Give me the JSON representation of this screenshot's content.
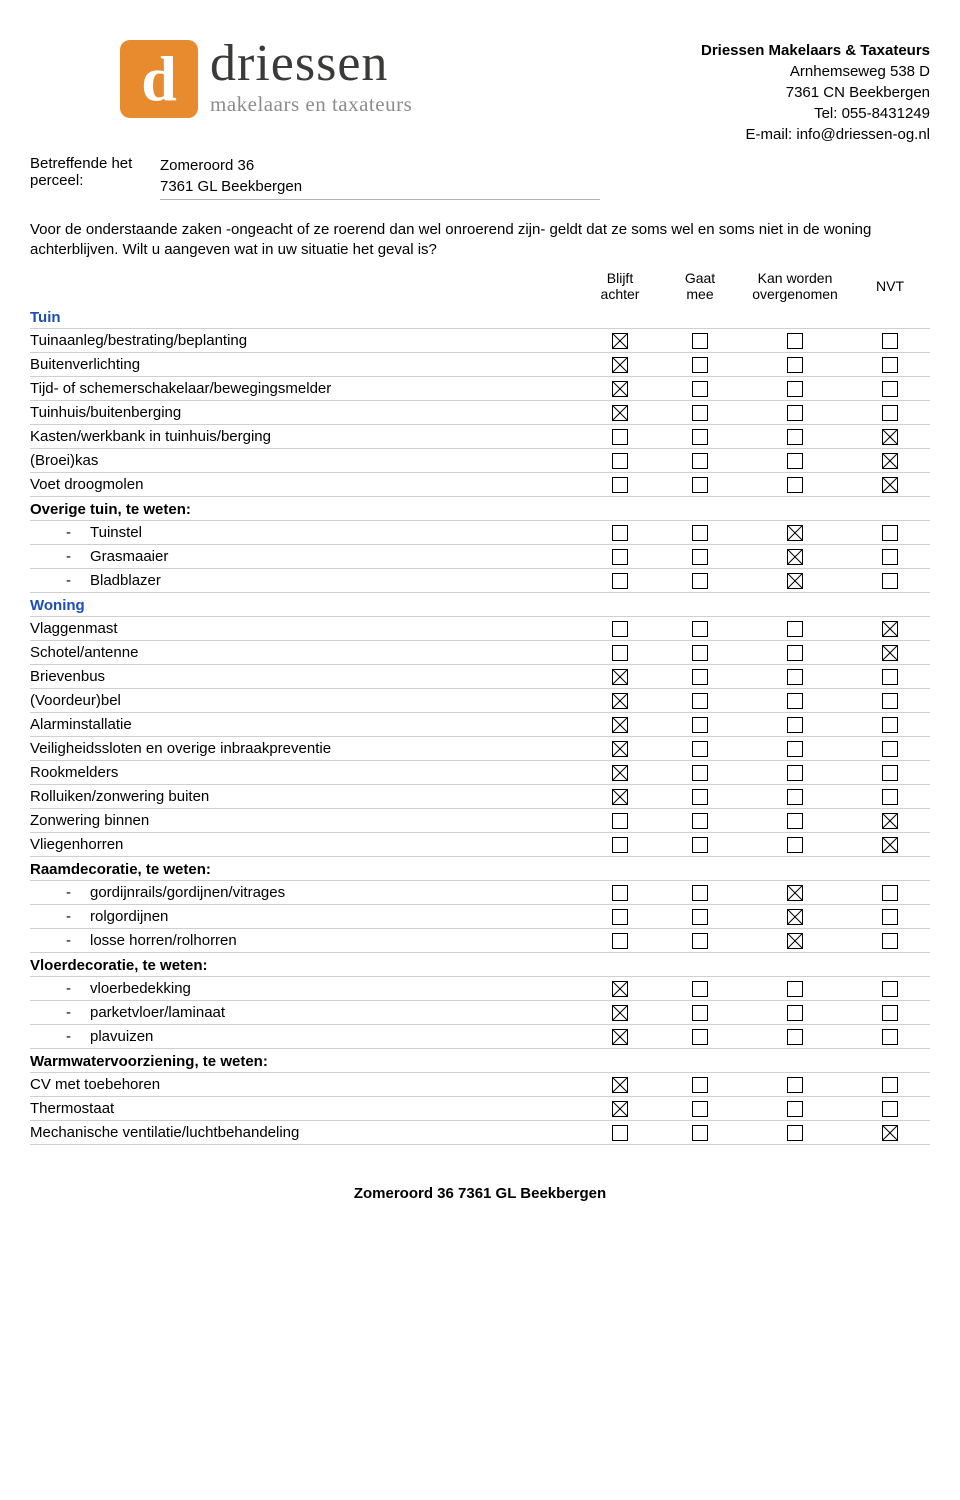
{
  "company": {
    "name": "Driessen Makelaars & Taxateurs",
    "address1": "Arnhemseweg 538 D",
    "address2": "7361 CN  Beekbergen",
    "tel": "Tel: 055-8431249",
    "email": "E-mail: info@driessen-og.nl"
  },
  "logo": {
    "letter": "d",
    "brand": "driessen",
    "tagline": "makelaars en taxateurs"
  },
  "parcel": {
    "label1": "Betreffende het",
    "label2": "perceel:",
    "line1": "Zomeroord 36",
    "line2": "7361 GL  Beekbergen"
  },
  "intro": "Voor de onderstaande zaken -ongeacht of ze roerend dan wel onroerend zijn- geldt dat ze soms wel en soms niet in de woning achterblijven. Wilt u aangeven wat in uw situatie het geval is?",
  "columns": {
    "c1a": "Blijft",
    "c1b": "achter",
    "c2a": "Gaat",
    "c2b": "mee",
    "c3a": "Kan worden",
    "c3b": "overgenomen",
    "c4": "NVT"
  },
  "sections": [
    {
      "type": "section",
      "label": "Tuin",
      "color": "blue"
    },
    {
      "type": "row",
      "label": "Tuinaanleg/bestrating/beplanting",
      "checks": [
        true,
        false,
        false,
        false
      ]
    },
    {
      "type": "row",
      "label": "Buitenverlichting",
      "checks": [
        true,
        false,
        false,
        false
      ]
    },
    {
      "type": "row",
      "label": "Tijd- of schemerschakelaar/bewegingsmelder",
      "checks": [
        true,
        false,
        false,
        false
      ]
    },
    {
      "type": "row",
      "label": "Tuinhuis/buitenberging",
      "checks": [
        true,
        false,
        false,
        false
      ]
    },
    {
      "type": "row",
      "label": "Kasten/werkbank in tuinhuis/berging",
      "checks": [
        false,
        false,
        false,
        true
      ]
    },
    {
      "type": "row",
      "label": "(Broei)kas",
      "checks": [
        false,
        false,
        false,
        true
      ]
    },
    {
      "type": "row",
      "label": "Voet droogmolen",
      "checks": [
        false,
        false,
        false,
        true
      ]
    },
    {
      "type": "section",
      "label": "Overige tuin, te weten:",
      "color": "black"
    },
    {
      "type": "sub",
      "label": "Tuinstel",
      "checks": [
        false,
        false,
        true,
        false
      ]
    },
    {
      "type": "sub",
      "label": "Grasmaaier",
      "checks": [
        false,
        false,
        true,
        false
      ]
    },
    {
      "type": "sub",
      "label": "Bladblazer",
      "checks": [
        false,
        false,
        true,
        false
      ]
    },
    {
      "type": "section",
      "label": "Woning",
      "color": "blue"
    },
    {
      "type": "row",
      "label": "Vlaggenmast",
      "checks": [
        false,
        false,
        false,
        true
      ]
    },
    {
      "type": "row",
      "label": "Schotel/antenne",
      "checks": [
        false,
        false,
        false,
        true
      ]
    },
    {
      "type": "row",
      "label": "Brievenbus",
      "checks": [
        true,
        false,
        false,
        false
      ]
    },
    {
      "type": "row",
      "label": "(Voordeur)bel",
      "checks": [
        true,
        false,
        false,
        false
      ]
    },
    {
      "type": "row",
      "label": "Alarminstallatie",
      "checks": [
        true,
        false,
        false,
        false
      ]
    },
    {
      "type": "row",
      "label": "Veiligheidssloten en overige inbraakpreventie",
      "checks": [
        true,
        false,
        false,
        false
      ]
    },
    {
      "type": "row",
      "label": "Rookmelders",
      "checks": [
        true,
        false,
        false,
        false
      ]
    },
    {
      "type": "row",
      "label": "Rolluiken/zonwering buiten",
      "checks": [
        true,
        false,
        false,
        false
      ]
    },
    {
      "type": "row",
      "label": "Zonwering binnen",
      "checks": [
        false,
        false,
        false,
        true
      ]
    },
    {
      "type": "row",
      "label": "Vliegenhorren",
      "checks": [
        false,
        false,
        false,
        true
      ]
    },
    {
      "type": "section",
      "label": "Raamdecoratie, te weten:",
      "color": "black"
    },
    {
      "type": "sub",
      "label": "gordijnrails/gordijnen/vitrages",
      "checks": [
        false,
        false,
        true,
        false
      ]
    },
    {
      "type": "sub",
      "label": "rolgordijnen",
      "checks": [
        false,
        false,
        true,
        false
      ]
    },
    {
      "type": "sub",
      "label": "losse horren/rolhorren",
      "checks": [
        false,
        false,
        true,
        false
      ]
    },
    {
      "type": "section",
      "label": "Vloerdecoratie, te weten:",
      "color": "black"
    },
    {
      "type": "sub",
      "label": "vloerbedekking",
      "checks": [
        true,
        false,
        false,
        false
      ]
    },
    {
      "type": "sub",
      "label": "parketvloer/laminaat",
      "checks": [
        true,
        false,
        false,
        false
      ]
    },
    {
      "type": "sub",
      "label": "plavuizen",
      "checks": [
        true,
        false,
        false,
        false
      ]
    },
    {
      "type": "section",
      "label": "Warmwatervoorziening, te weten:",
      "color": "black"
    },
    {
      "type": "row",
      "label": "CV met toebehoren",
      "checks": [
        true,
        false,
        false,
        false
      ]
    },
    {
      "type": "row",
      "label": "Thermostaat",
      "checks": [
        true,
        false,
        false,
        false
      ]
    },
    {
      "type": "row",
      "label": "Mechanische ventilatie/luchtbehandeling",
      "checks": [
        false,
        false,
        false,
        true
      ]
    }
  ],
  "footer": "Zomeroord 36 7361 GL Beekbergen"
}
